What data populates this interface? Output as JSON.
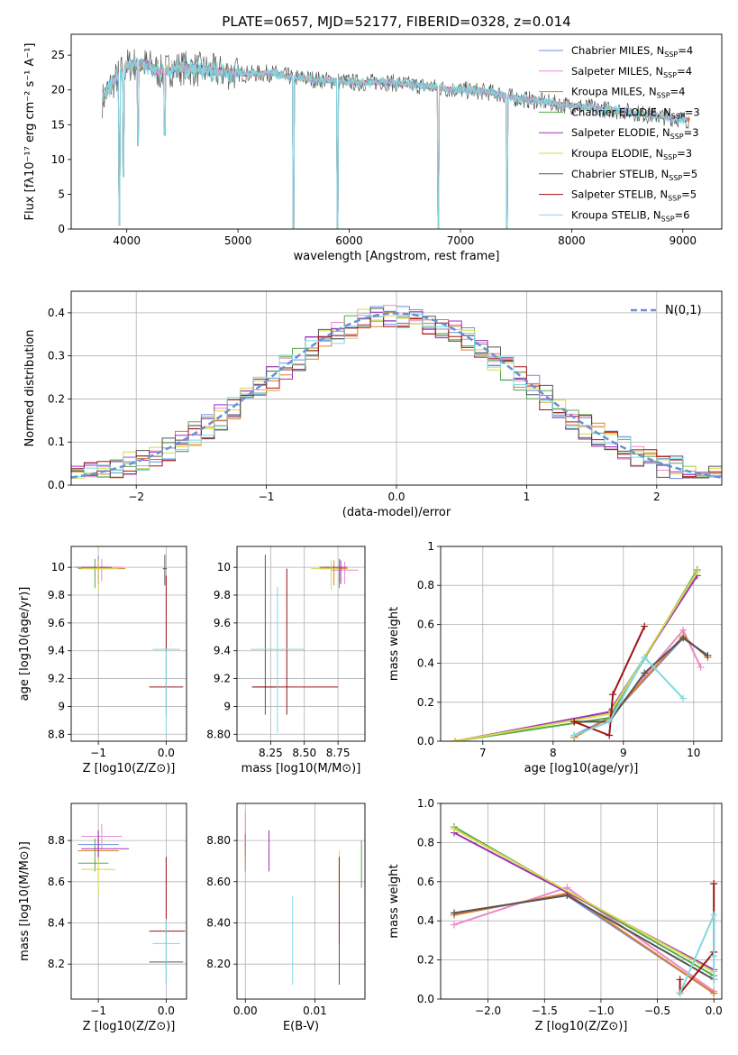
{
  "figure": {
    "title": "PLATE=0657, MJD=52177, FIBERID=0328, z=0.014"
  },
  "series_colors": {
    "Chabrier MILES": "#6b8fd6",
    "Salpeter MILES": "#e98ac8",
    "Kroupa MILES": "#e07f2c",
    "Chabrier ELODIE": "#56a84c",
    "Salpeter ELODIE": "#9b30b8",
    "Kroupa ELODIE": "#d7d84a",
    "Chabrier STELIB": "#555555",
    "Salpeter STELIB": "#a01414",
    "Kroupa STELIB": "#7fd9e0"
  },
  "legend_entries": [
    {
      "label": "Chabrier MILES, N",
      "sub": "SSP",
      "val": "=4",
      "key": "Chabrier MILES"
    },
    {
      "label": "Salpeter MILES, N",
      "sub": "SSP",
      "val": "=4",
      "key": "Salpeter MILES"
    },
    {
      "label": "Kroupa MILES, N",
      "sub": "SSP",
      "val": "=4",
      "key": "Kroupa MILES"
    },
    {
      "label": "Chabrier ELODIE, N",
      "sub": "SSP",
      "val": "=3",
      "key": "Chabrier ELODIE"
    },
    {
      "label": "Salpeter ELODIE, N",
      "sub": "SSP",
      "val": "=3",
      "key": "Salpeter ELODIE"
    },
    {
      "label": "Kroupa ELODIE, N",
      "sub": "SSP",
      "val": "=3",
      "key": "Kroupa ELODIE"
    },
    {
      "label": "Chabrier STELIB, N",
      "sub": "SSP",
      "val": "=5",
      "key": "Chabrier STELIB"
    },
    {
      "label": "Salpeter STELIB, N",
      "sub": "SSP",
      "val": "=5",
      "key": "Salpeter STELIB"
    },
    {
      "label": "Kroupa STELIB, N",
      "sub": "SSP",
      "val": "=6",
      "key": "Kroupa STELIB"
    }
  ],
  "chart_data": [
    {
      "id": "spectrum",
      "type": "line",
      "xlabel": "wavelength [Angstrom, rest frame]",
      "ylabel": "Flux [fλ10⁻¹⁷ erg cm⁻² s⁻¹ A⁻¹]",
      "xlim": [
        3500,
        9350
      ],
      "ylim": [
        0,
        28
      ],
      "xticks": [
        4000,
        5000,
        6000,
        7000,
        8000,
        9000
      ],
      "yticks": [
        0,
        5,
        10,
        15,
        20,
        25
      ],
      "grid": false,
      "legend_placement": "top-right",
      "data_spectrum": {
        "wavelength": [
          3780,
          3850,
          3900,
          3950,
          4000,
          4100,
          4200,
          4300,
          4400,
          4500,
          4700,
          4900,
          5100,
          5300,
          5500,
          5700,
          5900,
          6100,
          6300,
          6500,
          6700,
          6900,
          7100,
          7300,
          7500,
          7700,
          7900,
          8100,
          8300,
          8500,
          8700,
          8900,
          9050
        ],
        "flux": [
          18.5,
          20.5,
          21.5,
          22.5,
          23.5,
          23.8,
          23.5,
          22.5,
          23.0,
          23.2,
          22.8,
          22.5,
          22.3,
          22.4,
          21.8,
          21.5,
          21.3,
          21.0,
          21.2,
          20.8,
          20.5,
          20.1,
          19.9,
          19.6,
          18.8,
          18.4,
          17.9,
          17.6,
          17.2,
          16.9,
          16.4,
          16.0,
          15.7
        ]
      },
      "dips": [
        {
          "x": 3935,
          "y": 0.5
        },
        {
          "x": 3970,
          "y": 7.5
        },
        {
          "x": 4102,
          "y": 12.0
        },
        {
          "x": 4340,
          "y": 13.5
        },
        {
          "x": 5500,
          "y": 0.0
        },
        {
          "x": 5893,
          "y": 0.0
        },
        {
          "x": 6800,
          "y": 0.0
        },
        {
          "x": 7420,
          "y": 0.0
        }
      ]
    },
    {
      "id": "residual-histogram",
      "type": "bar",
      "xlabel": "(data-model)/error",
      "ylabel": "Normed distribution",
      "xlim": [
        -2.5,
        2.5
      ],
      "ylim": [
        0,
        0.45
      ],
      "xticks": [
        -2,
        -1,
        0,
        1,
        2
      ],
      "yticks": [
        0.0,
        0.1,
        0.2,
        0.3,
        0.4
      ],
      "grid": true,
      "legend": "N(0,1)",
      "normal_curve": {
        "mu": 0,
        "sigma": 1
      }
    },
    {
      "id": "age-vs-Z",
      "type": "scatter",
      "xlabel": "Z [log10(Z/Z⊙)]",
      "ylabel": "age  [log10(age/yr)]",
      "xlim": [
        -1.4,
        0.3
      ],
      "ylim": [
        8.75,
        10.15
      ],
      "xticks": [
        -1,
        0
      ],
      "yticks": [
        8.8,
        9.0,
        9.2,
        9.4,
        9.6,
        9.8,
        10.0
      ],
      "grid": true,
      "points": [
        {
          "s": "Chabrier MILES",
          "x": -1.0,
          "y": 10.0,
          "xerr": [
            0.35,
            0.35
          ],
          "yerr": [
            0.12,
            0.08
          ]
        },
        {
          "s": "Salpeter MILES",
          "x": -0.95,
          "y": 10.0,
          "xerr": [
            0.35,
            0.35
          ],
          "yerr": [
            0.1,
            0.06
          ]
        },
        {
          "s": "Kroupa MILES",
          "x": -1.0,
          "y": 9.99,
          "xerr": [
            0.3,
            0.4
          ],
          "yerr": [
            0.1,
            0.06
          ]
        },
        {
          "s": "Chabrier ELODIE",
          "x": -1.05,
          "y": 10.0,
          "xerr": [
            0.25,
            0.2
          ],
          "yerr": [
            0.15,
            0.06
          ]
        },
        {
          "s": "Salpeter ELODIE",
          "x": -1.0,
          "y": 10.0,
          "xerr": [
            0.25,
            0.2
          ],
          "yerr": [
            0.12,
            0.05
          ]
        },
        {
          "s": "Kroupa ELODIE",
          "x": -1.0,
          "y": 9.99,
          "xerr": [
            0.25,
            0.3
          ],
          "yerr": [
            0.15,
            0.06
          ]
        },
        {
          "s": "Chabrier STELIB",
          "x": -0.02,
          "y": 9.99,
          "xerr": [
            0.03,
            0.03
          ],
          "yerr": [
            0.12,
            0.1
          ]
        },
        {
          "s": "Salpeter STELIB",
          "x": 0.0,
          "y": 9.14,
          "xerr": [
            0.25,
            0.25
          ],
          "yerr": [
            0.2,
            0.8
          ]
        },
        {
          "s": "Kroupa STELIB",
          "x": 0.0,
          "y": 9.41,
          "xerr": [
            0.2,
            0.2
          ],
          "yerr": [
            0.6,
            0.0
          ]
        }
      ]
    },
    {
      "id": "age-vs-mass",
      "type": "scatter",
      "xlabel": "mass [log10(M/M⊙)]",
      "ylabel": "",
      "xlim": [
        8.0,
        8.95
      ],
      "ylim": [
        8.75,
        10.15
      ],
      "xticks": [
        8.25,
        8.5,
        8.75
      ],
      "yticks": [
        8.8,
        9.0,
        9.2,
        9.4,
        9.6,
        9.8,
        10.0
      ],
      "grid": true,
      "points": [
        {
          "s": "Chabrier MILES",
          "x": 8.76,
          "y": 10.0,
          "xerr": [
            0.1,
            0.05
          ],
          "yerr": [
            0.1,
            0.06
          ]
        },
        {
          "s": "Salpeter MILES",
          "x": 8.8,
          "y": 9.98,
          "xerr": [
            0.1,
            0.1
          ],
          "yerr": [
            0.1,
            0.06
          ]
        },
        {
          "s": "Kroupa MILES",
          "x": 8.72,
          "y": 9.99,
          "xerr": [
            0.1,
            0.1
          ],
          "yerr": [
            0.12,
            0.06
          ]
        },
        {
          "s": "Chabrier ELODIE",
          "x": 8.76,
          "y": 10.0,
          "xerr": [
            0.15,
            0.03
          ],
          "yerr": [
            0.15,
            0.06
          ]
        },
        {
          "s": "Salpeter ELODIE",
          "x": 8.77,
          "y": 10.0,
          "xerr": [
            0.15,
            0.05
          ],
          "yerr": [
            0.12,
            0.05
          ]
        },
        {
          "s": "Kroupa ELODIE",
          "x": 8.7,
          "y": 9.99,
          "xerr": [
            0.15,
            0.05
          ],
          "yerr": [
            0.15,
            0.06
          ]
        },
        {
          "s": "Chabrier STELIB",
          "x": 8.21,
          "y": 9.14,
          "xerr": [
            0.1,
            0.1
          ],
          "yerr": [
            0.2,
            0.95
          ]
        },
        {
          "s": "Salpeter STELIB",
          "x": 8.37,
          "y": 9.14,
          "xerr": [
            0.25,
            0.38
          ],
          "yerr": [
            0.2,
            0.85
          ]
        },
        {
          "s": "Kroupa STELIB",
          "x": 8.3,
          "y": 9.41,
          "xerr": [
            0.2,
            0.2
          ],
          "yerr": [
            0.6,
            0.45
          ]
        }
      ]
    },
    {
      "id": "massweight-vs-age",
      "type": "line",
      "xlabel": "age  [log10(age/yr)]",
      "ylabel": "mass weight",
      "xlim": [
        6.4,
        10.4
      ],
      "ylim": [
        0.0,
        1.0
      ],
      "xticks": [
        7,
        8,
        9,
        10
      ],
      "yticks": [
        0.0,
        0.2,
        0.4,
        0.6,
        0.8,
        1.0
      ],
      "grid": true,
      "series": [
        {
          "s": "Chabrier MILES",
          "x": [
            8.3,
            8.8,
            9.85,
            10.2
          ],
          "y": [
            0.03,
            0.12,
            0.53,
            0.44
          ]
        },
        {
          "s": "Salpeter MILES",
          "x": [
            8.3,
            8.8,
            9.85,
            10.1
          ],
          "y": [
            0.02,
            0.12,
            0.57,
            0.38
          ]
        },
        {
          "s": "Kroupa MILES",
          "x": [
            8.3,
            8.8,
            9.85,
            10.2
          ],
          "y": [
            0.02,
            0.12,
            0.54,
            0.43
          ]
        },
        {
          "s": "Chabrier ELODIE",
          "x": [
            6.6,
            8.8,
            10.05
          ],
          "y": [
            0.0,
            0.12,
            0.88
          ]
        },
        {
          "s": "Salpeter ELODIE",
          "x": [
            6.6,
            8.8,
            10.05
          ],
          "y": [
            0.0,
            0.15,
            0.85
          ]
        },
        {
          "s": "Kroupa ELODIE",
          "x": [
            6.6,
            8.8,
            10.05
          ],
          "y": [
            0.0,
            0.14,
            0.87
          ]
        },
        {
          "s": "Chabrier STELIB",
          "x": [
            8.3,
            8.8,
            9.3,
            9.85,
            10.2
          ],
          "y": [
            0.1,
            0.1,
            0.35,
            0.53,
            0.44
          ]
        },
        {
          "s": "Salpeter STELIB",
          "x": [
            8.3,
            8.8,
            8.85,
            9.3
          ],
          "y": [
            0.1,
            0.03,
            0.24,
            0.59
          ]
        },
        {
          "s": "Kroupa STELIB",
          "x": [
            8.3,
            8.8,
            9.3,
            9.85
          ],
          "y": [
            0.03,
            0.1,
            0.43,
            0.22
          ]
        }
      ]
    },
    {
      "id": "mass-vs-Z",
      "type": "scatter",
      "xlabel": "Z [log10(Z/Z⊙)]",
      "ylabel": "mass [log10(M/M⊙)]",
      "xlim": [
        -1.4,
        0.3
      ],
      "ylim": [
        8.03,
        8.98
      ],
      "xticks": [
        -1,
        0
      ],
      "yticks": [
        8.2,
        8.4,
        8.6,
        8.8
      ],
      "grid": true,
      "points": [
        {
          "s": "Chabrier MILES",
          "x": -1.0,
          "y": 8.78,
          "xerr": [
            0.3,
            0.3
          ],
          "yerr": [
            0.06,
            0.06
          ]
        },
        {
          "s": "Salpeter MILES",
          "x": -0.95,
          "y": 8.82,
          "xerr": [
            0.3,
            0.3
          ],
          "yerr": [
            0.06,
            0.06
          ]
        },
        {
          "s": "Kroupa MILES",
          "x": -1.0,
          "y": 8.75,
          "xerr": [
            0.3,
            0.3
          ],
          "yerr": [
            0.06,
            0.06
          ]
        },
        {
          "s": "Chabrier ELODIE",
          "x": -1.05,
          "y": 8.69,
          "xerr": [
            0.25,
            0.2
          ],
          "yerr": [
            0.04,
            0.12
          ]
        },
        {
          "s": "Salpeter ELODIE",
          "x": -1.0,
          "y": 8.76,
          "xerr": [
            0.25,
            0.45
          ],
          "yerr": [
            0.05,
            0.09
          ]
        },
        {
          "s": "Kroupa ELODIE",
          "x": -1.0,
          "y": 8.66,
          "xerr": [
            0.25,
            0.25
          ],
          "yerr": [
            0.12,
            0.06
          ]
        },
        {
          "s": "Chabrier STELIB",
          "x": 0.0,
          "y": 8.21,
          "xerr": [
            0.25,
            0.25
          ],
          "yerr": [
            0.11,
            0.1
          ]
        },
        {
          "s": "Salpeter STELIB",
          "x": 0.0,
          "y": 8.36,
          "xerr": [
            0.25,
            0.28
          ],
          "yerr": [
            0.06,
            0.36
          ]
        },
        {
          "s": "Kroupa STELIB",
          "x": 0.0,
          "y": 8.3,
          "xerr": [
            0.2,
            0.2
          ],
          "yerr": [
            0.2,
            0.12
          ]
        }
      ]
    },
    {
      "id": "mass-vs-EBV",
      "type": "scatter",
      "xlabel": "E(B-V)",
      "ylabel": "",
      "xlim": [
        -0.0012,
        0.0172
      ],
      "ylim": [
        8.03,
        8.98
      ],
      "xticks": [
        0.0,
        0.01
      ],
      "yticks": [
        8.2,
        8.4,
        8.6,
        8.8
      ],
      "grid": true,
      "points": [
        {
          "s": "Chabrier MILES",
          "x": 0.0,
          "y": 8.78,
          "xerr": [
            0,
            0
          ],
          "yerr": [
            0.06,
            0.06
          ]
        },
        {
          "s": "Salpeter MILES",
          "x": 0.0,
          "y": 8.82,
          "xerr": [
            0,
            0
          ],
          "yerr": [
            0.06,
            0.12
          ]
        },
        {
          "s": "Kroupa MILES",
          "x": 0.0,
          "y": 8.75,
          "xerr": [
            0,
            0
          ],
          "yerr": [
            0.1,
            0.08
          ]
        },
        {
          "s": "Chabrier ELODIE",
          "x": 0.0167,
          "y": 8.69,
          "xerr": [
            0,
            0
          ],
          "yerr": [
            0.12,
            0.11
          ]
        },
        {
          "s": "Salpeter ELODIE",
          "x": 0.0034,
          "y": 8.75,
          "xerr": [
            0,
            0
          ],
          "yerr": [
            0.1,
            0.1
          ]
        },
        {
          "s": "Kroupa ELODIE",
          "x": 0.0135,
          "y": 8.66,
          "xerr": [
            0,
            0
          ],
          "yerr": [
            0.12,
            0.09
          ]
        },
        {
          "s": "Chabrier STELIB",
          "x": 0.0135,
          "y": 8.21,
          "xerr": [
            0,
            0
          ],
          "yerr": [
            0.11,
            0.1
          ]
        },
        {
          "s": "Salpeter STELIB",
          "x": 0.0135,
          "y": 8.36,
          "xerr": [
            0,
            0
          ],
          "yerr": [
            0.06,
            0.36
          ]
        },
        {
          "s": "Kroupa STELIB",
          "x": 0.0068,
          "y": 8.3,
          "xerr": [
            0,
            0
          ],
          "yerr": [
            0.2,
            0.23
          ]
        }
      ]
    },
    {
      "id": "massweight-vs-Z",
      "type": "line",
      "xlabel": "Z [log10(Z/Z⊙)]",
      "ylabel": "mass weight",
      "xlim": [
        -2.42,
        0.07
      ],
      "ylim": [
        0.0,
        1.0
      ],
      "xticks": [
        -2.0,
        -1.5,
        -1.0,
        -0.5,
        0.0
      ],
      "yticks": [
        0.0,
        0.2,
        0.4,
        0.6,
        0.8,
        1.0
      ],
      "grid": true,
      "series": [
        {
          "s": "Chabrier MILES",
          "x": [
            -2.3,
            -1.3,
            0.0
          ],
          "y": [
            0.44,
            0.53,
            0.03
          ]
        },
        {
          "s": "Salpeter MILES",
          "x": [
            -2.3,
            -1.3,
            0.0
          ],
          "y": [
            0.38,
            0.57,
            0.04
          ]
        },
        {
          "s": "Kroupa MILES",
          "x": [
            -2.3,
            -1.3,
            0.0
          ],
          "y": [
            0.43,
            0.54,
            0.03
          ]
        },
        {
          "s": "Chabrier ELODIE",
          "x": [
            -2.3,
            0.0
          ],
          "y": [
            0.88,
            0.12
          ]
        },
        {
          "s": "Salpeter ELODIE",
          "x": [
            -2.3,
            0.0
          ],
          "y": [
            0.85,
            0.15
          ]
        },
        {
          "s": "Kroupa ELODIE",
          "x": [
            -2.3,
            0.0
          ],
          "y": [
            0.87,
            0.14
          ]
        },
        {
          "s": "Chabrier STELIB",
          "x": [
            -2.3,
            -1.3,
            0.0
          ],
          "y": [
            0.44,
            0.53,
            0.1
          ]
        },
        {
          "s": "Salpeter STELIB",
          "x": [
            -0.3,
            -0.3,
            0.0,
            0.0,
            0.0
          ],
          "y": [
            0.1,
            0.03,
            0.24,
            0.59,
            0.24
          ]
        },
        {
          "s": "Kroupa STELIB",
          "x": [
            -0.3,
            0.0,
            0.0,
            0.0
          ],
          "y": [
            0.03,
            0.43,
            0.22,
            0.1
          ]
        }
      ]
    }
  ]
}
